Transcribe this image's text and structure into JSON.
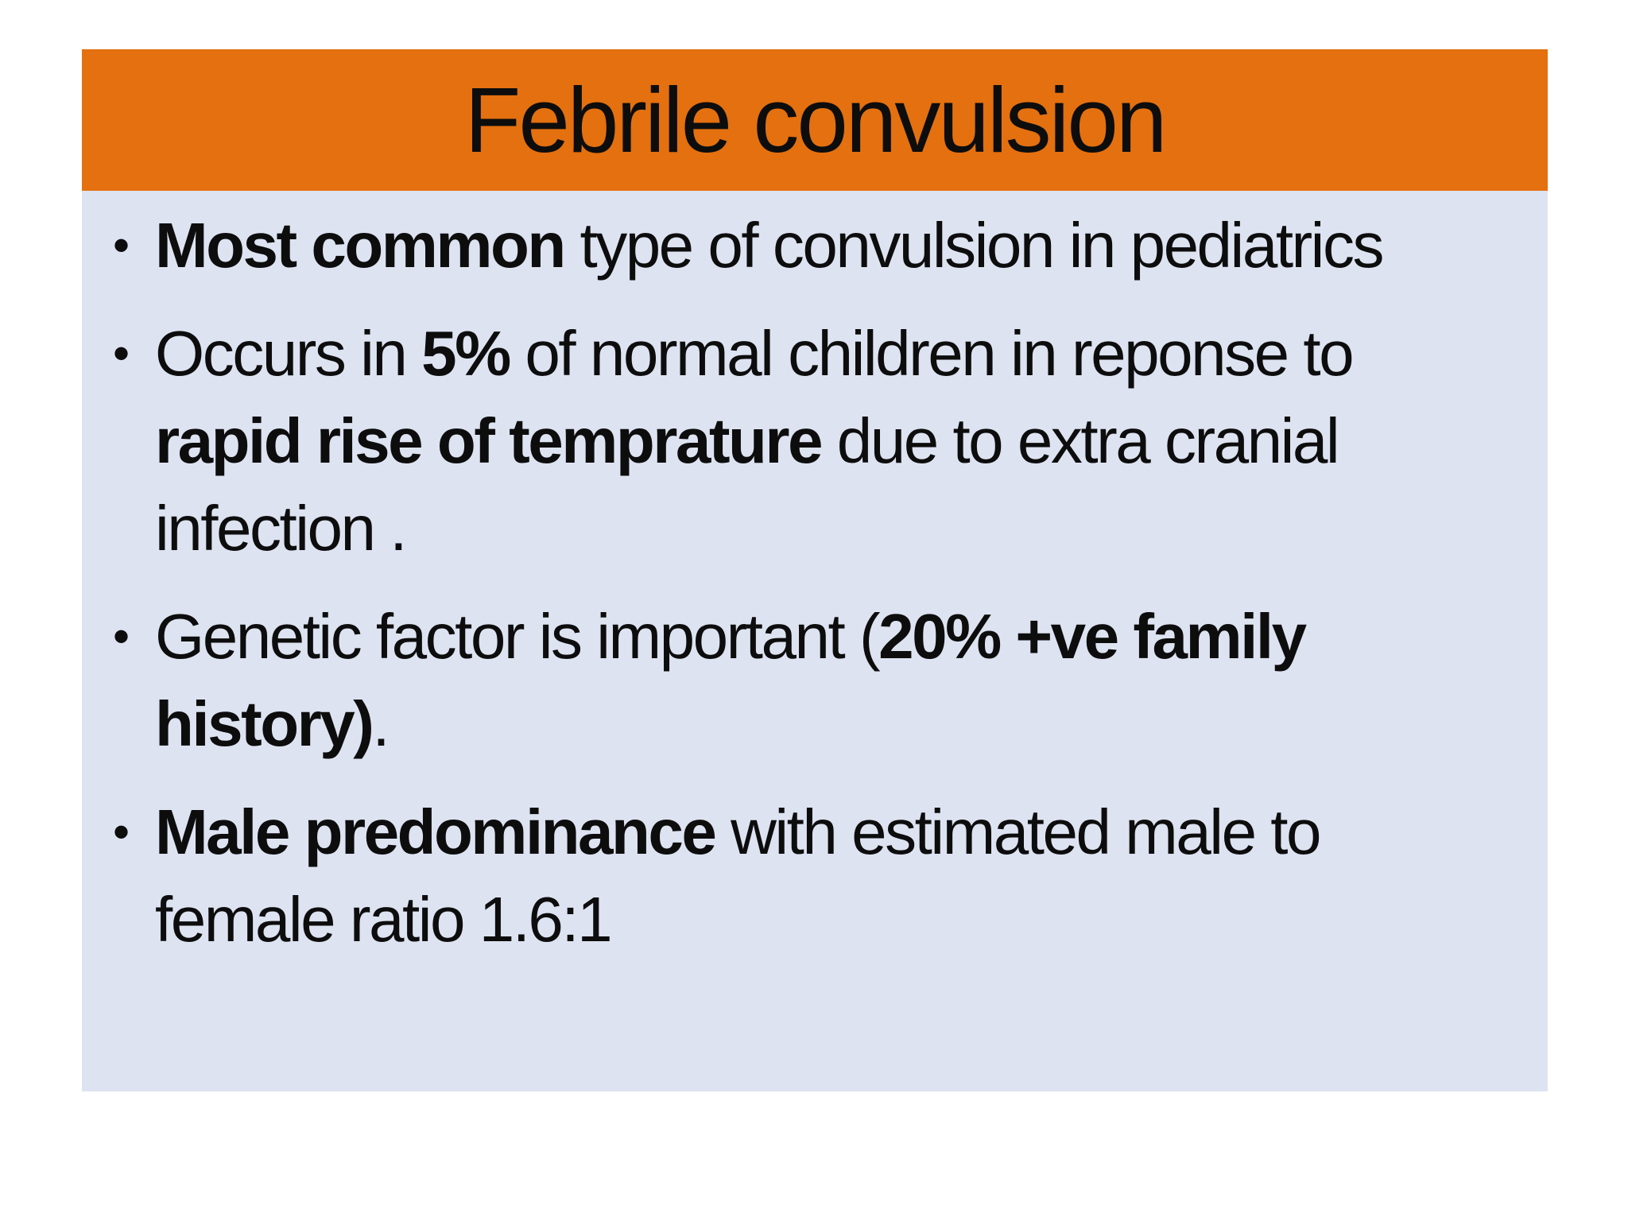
{
  "slide": {
    "title": "Febrile convulsion",
    "bullet_glyph": "•",
    "colors": {
      "page_bg": "#ffffff",
      "header_bg": "#E4700F",
      "body_bg": "#DDE3F1",
      "text": "#0d0d0d"
    },
    "bullets": [
      {
        "lines": [
          [
            {
              "t": "Most common",
              "b": true
            },
            {
              "t": " type of convulsion in pediatrics",
              "b": false
            }
          ]
        ]
      },
      {
        "lines": [
          [
            {
              "t": "Occurs in ",
              "b": false
            },
            {
              "t": "5%",
              "b": true
            },
            {
              "t": " of normal children in reponse to",
              "b": false
            }
          ],
          [
            {
              "t": "rapid rise of temprature",
              "b": true
            },
            {
              "t": " due to extra cranial",
              "b": false
            }
          ],
          [
            {
              "t": "infection .",
              "b": false
            }
          ]
        ]
      },
      {
        "lines": [
          [
            {
              "t": "Genetic factor is important (",
              "b": false
            },
            {
              "t": "20% +ve family",
              "b": true
            }
          ],
          [
            {
              "t": "history)",
              "b": true
            },
            {
              "t": ".",
              "b": false
            }
          ]
        ]
      },
      {
        "lines": [
          [
            {
              "t": "Male predominance",
              "b": true
            },
            {
              "t": " with estimated male to",
              "b": false
            }
          ],
          [
            {
              "t": "female ratio 1.6:1",
              "b": false
            }
          ]
        ]
      }
    ]
  }
}
